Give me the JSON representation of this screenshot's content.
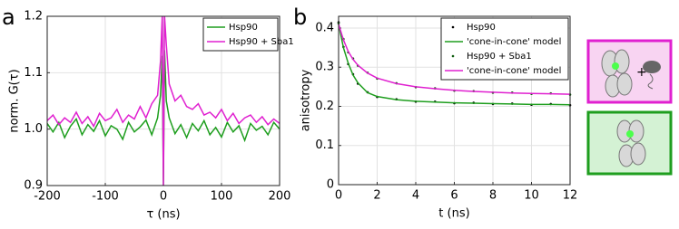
{
  "chart_data": [
    {
      "type": "line",
      "panel_label": "a",
      "xlabel": "τ (ns)",
      "ylabel": "norm. G(τ)",
      "xlim": [
        -200,
        200
      ],
      "ylim": [
        0.9,
        1.2
      ],
      "xticks": [
        -200,
        -100,
        0,
        100,
        200
      ],
      "yticks": [
        0.9,
        {
          "value": 1,
          "label": "1.0"
        },
        1.1,
        1.2
      ],
      "grid": true,
      "legend": "upper right",
      "x": [
        -200,
        -190,
        -180,
        -170,
        -160,
        -150,
        -140,
        -130,
        -120,
        -110,
        -100,
        -90,
        -80,
        -70,
        -60,
        -50,
        -40,
        -30,
        -20,
        -10,
        -5,
        -2,
        0,
        2,
        5,
        10,
        20,
        30,
        40,
        50,
        60,
        70,
        80,
        90,
        100,
        110,
        120,
        130,
        140,
        150,
        160,
        170,
        180,
        190,
        200
      ],
      "series": [
        {
          "name": "Hsp90",
          "color": "#1e9e1e",
          "style": "line",
          "values": [
            1.01,
            0.995,
            1.012,
            0.985,
            1.005,
            1.018,
            0.99,
            1.008,
            0.996,
            1.015,
            0.988,
            1.006,
            1.0,
            0.982,
            1.012,
            0.995,
            1.004,
            1.016,
            0.99,
            1.02,
            1.06,
            1.13,
            0.9,
            1.14,
            1.05,
            1.02,
            0.992,
            1.008,
            0.985,
            1.01,
            0.997,
            1.015,
            0.99,
            1.003,
            0.986,
            1.012,
            0.995,
            1.006,
            0.98,
            1.01,
            0.998,
            1.005,
            0.99,
            1.012,
            1.0
          ]
        },
        {
          "name": "Hsp90 + Sba1",
          "color": "#e020d0",
          "style": "line",
          "values": [
            1.015,
            1.025,
            1.008,
            1.02,
            1.012,
            1.03,
            1.01,
            1.022,
            1.005,
            1.028,
            1.015,
            1.02,
            1.035,
            1.012,
            1.025,
            1.018,
            1.04,
            1.02,
            1.045,
            1.06,
            1.12,
            1.2,
            0.9,
            1.2,
            1.15,
            1.08,
            1.05,
            1.06,
            1.04,
            1.035,
            1.045,
            1.025,
            1.03,
            1.02,
            1.035,
            1.015,
            1.028,
            1.01,
            1.02,
            1.025,
            1.012,
            1.022,
            1.008,
            1.018,
            1.01
          ]
        }
      ]
    },
    {
      "type": "line",
      "panel_label": "b",
      "xlabel": "t (ns)",
      "ylabel": "anisotropy",
      "xlim": [
        0,
        12
      ],
      "ylim": [
        0,
        0.43
      ],
      "xticks": [
        0,
        2,
        4,
        6,
        8,
        10,
        12
      ],
      "yticks": [
        0,
        0.1,
        0.2,
        0.3,
        0.4
      ],
      "grid": true,
      "legend": "upper right",
      "x": [
        0,
        0.25,
        0.5,
        0.75,
        1,
        1.5,
        2,
        3,
        4,
        5,
        6,
        7,
        8,
        9,
        10,
        11,
        12
      ],
      "series": [
        {
          "name": "Hsp90",
          "color": "#000000",
          "style": "points",
          "values": [
            0.415,
            0.352,
            0.308,
            0.282,
            0.258,
            0.236,
            0.224,
            0.218,
            0.212,
            0.212,
            0.208,
            0.209,
            0.206,
            0.207,
            0.204,
            0.206,
            0.203
          ]
        },
        {
          "name": "'cone-in-cone' model",
          "color": "#1e9e1e",
          "style": "line",
          "values": [
            0.41,
            0.35,
            0.31,
            0.28,
            0.26,
            0.235,
            0.225,
            0.217,
            0.213,
            0.211,
            0.209,
            0.208,
            0.207,
            0.206,
            0.205,
            0.205,
            0.204
          ]
        },
        {
          "name": "Hsp90 + Sba1",
          "color": "#0a5a0a",
          "style": "points",
          "values": [
            0.412,
            0.372,
            0.338,
            0.322,
            0.304,
            0.286,
            0.271,
            0.259,
            0.249,
            0.246,
            0.24,
            0.239,
            0.235,
            0.235,
            0.232,
            0.233,
            0.23
          ]
        },
        {
          "name": "'cone-in-cone' model",
          "color": "#e020d0",
          "style": "line",
          "values": [
            0.41,
            0.37,
            0.34,
            0.32,
            0.305,
            0.285,
            0.272,
            0.258,
            0.25,
            0.245,
            0.241,
            0.238,
            0.236,
            0.234,
            0.233,
            0.232,
            0.231
          ]
        }
      ]
    }
  ]
}
